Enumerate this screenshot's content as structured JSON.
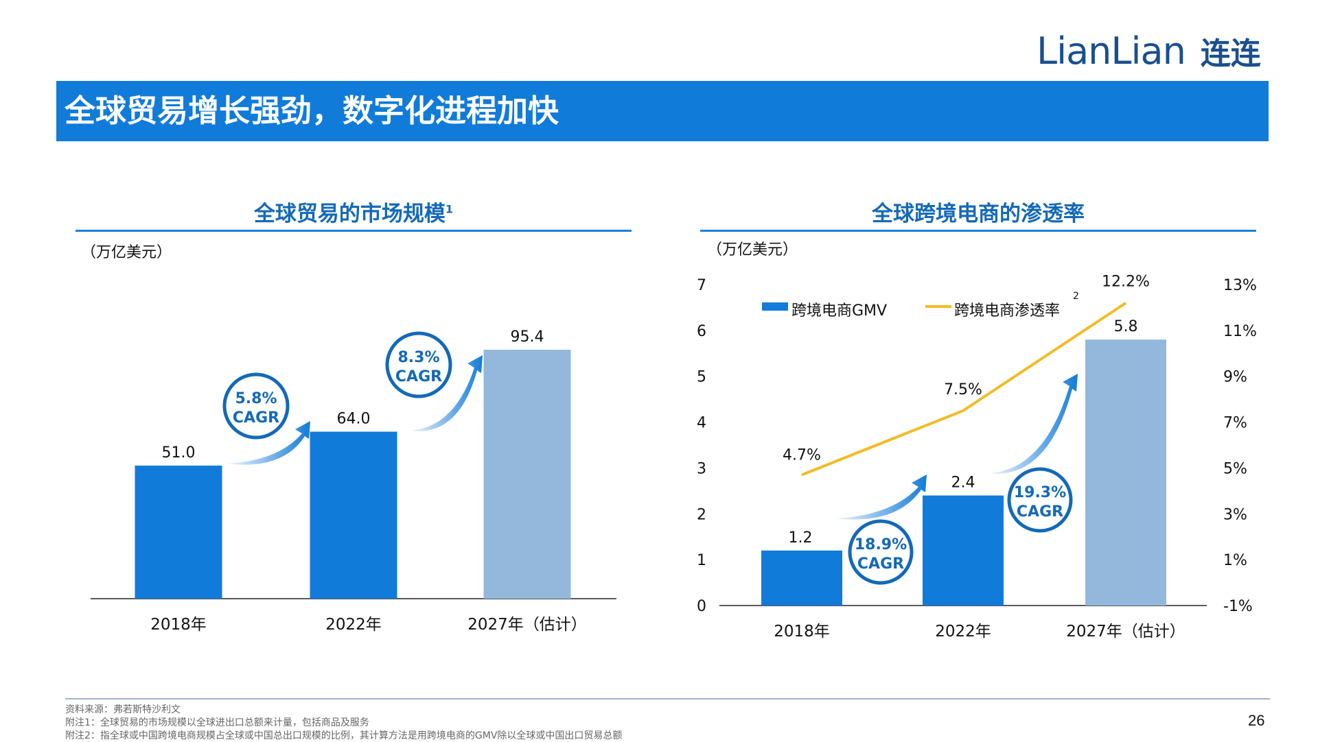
{
  "header": {
    "logo_latin": "LianLian",
    "logo_cjk": "连连",
    "title": "全球贸易增长强劲，数字化进程加快"
  },
  "colors": {
    "brand_blue": "#117bd9",
    "bar_blue": "#117bd9",
    "bar_light": "#93b8dc",
    "line_yellow": "#f2bb25",
    "title_blue": "#1369b8"
  },
  "left_chart": {
    "title": "全球贸易的市场规模",
    "title_sup": "1",
    "unit": "（万亿美元）"
  },
  "right_chart": {
    "title": "全球跨境电商的渗透率",
    "unit": "（万亿美元）",
    "legend_sup": "2"
  },
  "chart_data": [
    {
      "type": "bar",
      "title": "全球贸易的市场规模",
      "ylabel": "（万亿美元）",
      "categories": [
        "2018年",
        "2022年",
        "2027年（估计）"
      ],
      "series": [
        {
          "values": [
            51.0,
            64.0,
            95.4
          ]
        }
      ],
      "value_labels": [
        "51.0",
        "64.0",
        "95.4"
      ],
      "estimated_index": 2,
      "ylim": [
        0,
        110
      ],
      "annotations": [
        {
          "label": "5.8%",
          "sub": "CAGR",
          "from": 0,
          "to": 1
        },
        {
          "label": "8.3%",
          "sub": "CAGR",
          "from": 1,
          "to": 2
        }
      ]
    },
    {
      "type": "bar",
      "title": "全球跨境电商的渗透率",
      "ylabel": "（万亿美元）",
      "categories": [
        "2018年",
        "2022年",
        "2027年（估计）"
      ],
      "series": [
        {
          "name": "跨境电商GMV",
          "type": "bar",
          "axis": "left",
          "values": [
            1.2,
            2.4,
            5.8
          ],
          "labels": [
            "1.2",
            "2.4",
            "5.8"
          ]
        },
        {
          "name": "跨境电商渗透率",
          "type": "line",
          "axis": "right",
          "values": [
            4.7,
            7.5,
            12.2
          ],
          "labels": [
            "4.7%",
            "7.5%",
            "12.2%"
          ]
        }
      ],
      "estimated_index": 2,
      "ylim": [
        0,
        7
      ],
      "y_ticks": [
        "0",
        "1",
        "2",
        "3",
        "4",
        "5",
        "6",
        "7"
      ],
      "y2lim": [
        -1,
        13
      ],
      "y2_ticks": [
        "-1%",
        "1%",
        "3%",
        "5%",
        "7%",
        "9%",
        "11%",
        "13%"
      ],
      "legend": "top-left",
      "annotations": [
        {
          "label": "18.9%",
          "sub": "CAGR",
          "from": 0,
          "to": 1
        },
        {
          "label": "19.3%",
          "sub": "CAGR",
          "from": 1,
          "to": 2
        }
      ]
    }
  ],
  "footnotes": [
    "资料来源：弗若斯特沙利文",
    "附注1：全球贸易的市场规模以全球进出口总额来计量，包括商品及服务",
    "附注2：指全球或中国跨境电商规模占全球或中国总出口规模的比例，其计算方法是用跨境电商的GMV除以全球或中国出口贸易总额"
  ],
  "page_number": "26"
}
